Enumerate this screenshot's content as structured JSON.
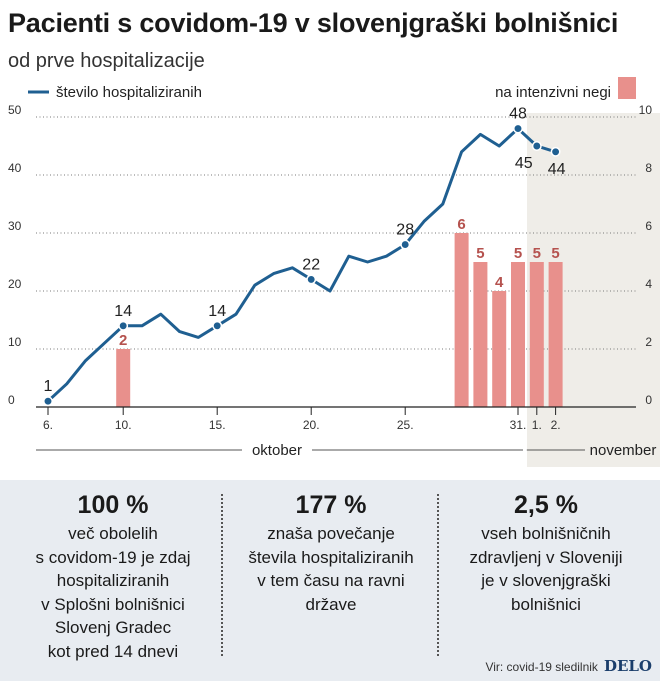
{
  "title": "Pacienti s covidom-19 v slovenjgraški bolnišnici",
  "subtitle": "od prve hospitalizacije",
  "chart_data": {
    "type": "line+bar",
    "series": [
      {
        "name": "število hospitaliziranih",
        "type": "line",
        "axis": "left",
        "color": "#1f5f91",
        "x": [
          "2020-10-06",
          "2020-10-07",
          "2020-10-08",
          "2020-10-09",
          "2020-10-10",
          "2020-10-11",
          "2020-10-12",
          "2020-10-13",
          "2020-10-14",
          "2020-10-15",
          "2020-10-16",
          "2020-10-17",
          "2020-10-18",
          "2020-10-19",
          "2020-10-20",
          "2020-10-21",
          "2020-10-22",
          "2020-10-23",
          "2020-10-24",
          "2020-10-25",
          "2020-10-26",
          "2020-10-27",
          "2020-10-28",
          "2020-10-29",
          "2020-10-30",
          "2020-10-31",
          "2020-11-01",
          "2020-11-02"
        ],
        "values": [
          1,
          4,
          8,
          11,
          14,
          14,
          16,
          13,
          12,
          14,
          16,
          21,
          23,
          24,
          22,
          20,
          26,
          25,
          26,
          28,
          32,
          35,
          44,
          47,
          45,
          48,
          45,
          44
        ]
      },
      {
        "name": "na intenzivni negi",
        "type": "bar",
        "axis": "right",
        "color": "#e8908c",
        "x": [
          "2020-10-10",
          "2020-10-28",
          "2020-10-29",
          "2020-10-30",
          "2020-10-31",
          "2020-11-01",
          "2020-11-02"
        ],
        "values": [
          2,
          6,
          5,
          4,
          5,
          5,
          5
        ]
      }
    ],
    "line_point_labels": [
      {
        "x": "2020-10-06",
        "text": "1"
      },
      {
        "x": "2020-10-10",
        "text": "14"
      },
      {
        "x": "2020-10-15",
        "text": "14"
      },
      {
        "x": "2020-10-20",
        "text": "22"
      },
      {
        "x": "2020-10-25",
        "text": "28"
      },
      {
        "x": "2020-10-31",
        "text": "48"
      },
      {
        "x": "2020-11-01",
        "text": "45"
      },
      {
        "x": "2020-11-02",
        "text": "44"
      }
    ],
    "left_axis": {
      "ylim": [
        0,
        50
      ],
      "ticks": [
        "0",
        "10",
        "20",
        "30",
        "40",
        "50"
      ]
    },
    "right_axis": {
      "ylim": [
        0,
        10
      ],
      "ticks": [
        "0",
        "2",
        "4",
        "6",
        "8",
        "10"
      ]
    },
    "x_ticks": [
      {
        "x": "2020-10-06",
        "label": "6."
      },
      {
        "x": "2020-10-10",
        "label": "10."
      },
      {
        "x": "2020-10-15",
        "label": "15."
      },
      {
        "x": "2020-10-20",
        "label": "20."
      },
      {
        "x": "2020-10-25",
        "label": "25."
      },
      {
        "x": "2020-10-31",
        "label": "31."
      },
      {
        "x": "2020-11-01",
        "label": "1."
      },
      {
        "x": "2020-11-02",
        "label": "2."
      }
    ],
    "months": [
      {
        "label": "oktober",
        "from": "2020-10-06",
        "to": "2020-10-31"
      },
      {
        "label": "november",
        "from": "2020-11-01",
        "to": "2020-11-02"
      }
    ],
    "highlight_range": {
      "from": "2020-10-31",
      "to": "2020-11-02",
      "color": "#efede8"
    },
    "grid": "horizontal dotted",
    "legend": "top"
  },
  "stats": [
    {
      "value": "100 %",
      "lines": [
        "več obolelih",
        "s covidom-19 je zdaj",
        "hospitaliziranih",
        "v Splošni bolnišnici",
        "Slovenj Gradec",
        "kot pred 14 dnevi"
      ]
    },
    {
      "value": "177 %",
      "lines": [
        "znaša povečanje",
        "števila hospitaliziranih",
        "v tem času na ravni",
        "države"
      ]
    },
    {
      "value": "2,5 %",
      "lines": [
        "vseh bolnišničnih",
        "zdravljenj v Sloveniji",
        "je v slovenjgraški",
        "bolnišnici"
      ]
    }
  ],
  "source": {
    "text": "Vir: covid-19 sledilnik",
    "brand": "DELO"
  }
}
